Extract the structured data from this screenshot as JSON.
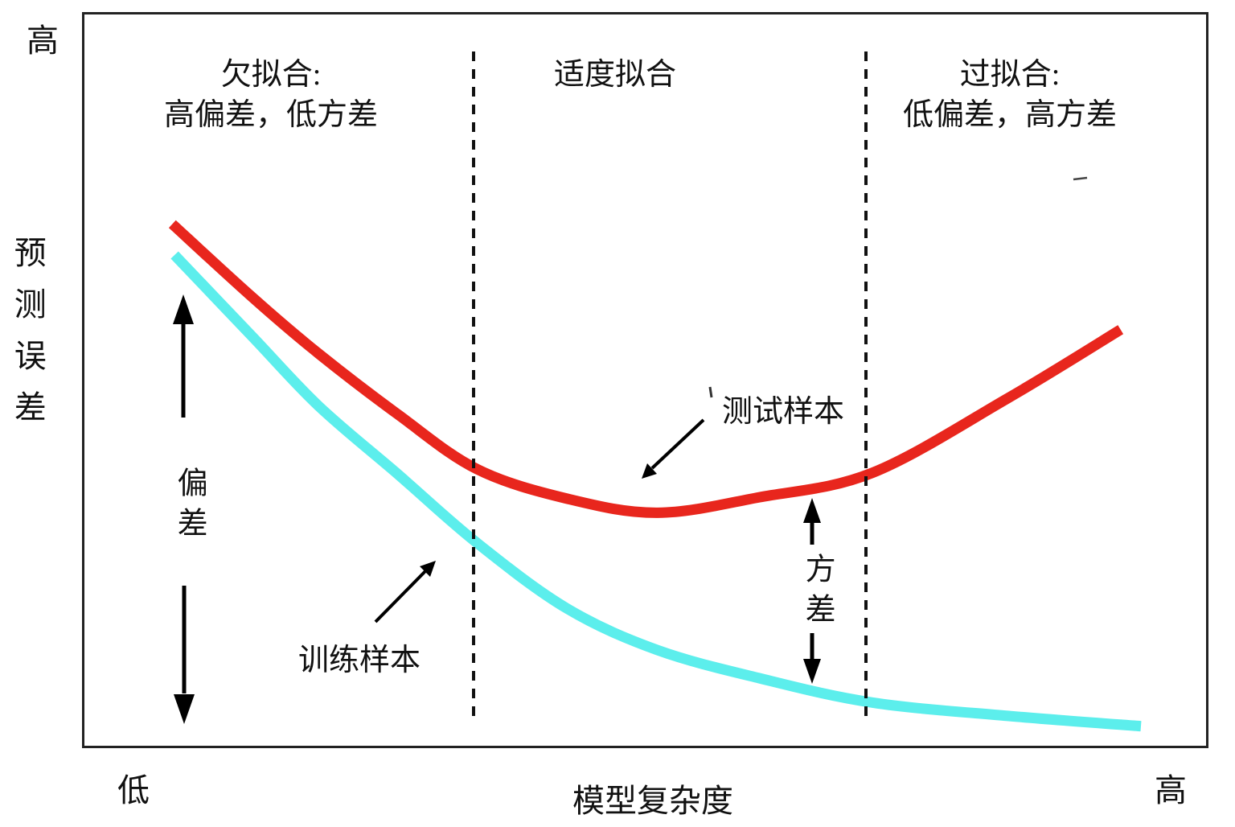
{
  "chart": {
    "y_axis": {
      "top_label": "高",
      "title": "预测误差"
    },
    "x_axis": {
      "left_label": "低",
      "right_label": "高",
      "title": "模型复杂度"
    },
    "regions": [
      {
        "line1": "欠拟合:",
        "line2": "高偏差，低方差"
      },
      {
        "line1": "适度拟合",
        "line2": ""
      },
      {
        "line1": "过拟合:",
        "line2": "低偏差，高方差"
      }
    ],
    "annotations": {
      "bias": "偏差",
      "variance": "方差",
      "train": "训练样本",
      "test": "测试样本"
    },
    "colors": {
      "test_curve": "#e8261d",
      "train_curve": "#5ceeec",
      "ink": "#111111"
    }
  },
  "chart_data": {
    "type": "line",
    "title": "",
    "xlabel": "模型复杂度",
    "ylabel": "预测误差",
    "x_axis_end_labels": [
      "低",
      "高"
    ],
    "y_axis_top_label": "高",
    "x_range": [
      0,
      1
    ],
    "y_range": [
      0,
      1
    ],
    "grid": false,
    "legend_position": "inline-annotations",
    "region_boundaries_x": [
      0.347,
      0.694
    ],
    "region_labels": [
      "欠拟合: 高偏差，低方差",
      "适度拟合",
      "过拟合: 低偏差，高方差"
    ],
    "series": [
      {
        "name": "测试样本",
        "color": "#e8261d",
        "points": [
          [
            0.08,
            0.713
          ],
          [
            0.15,
            0.615
          ],
          [
            0.21,
            0.537
          ],
          [
            0.28,
            0.455
          ],
          [
            0.35,
            0.381
          ],
          [
            0.43,
            0.341
          ],
          [
            0.51,
            0.322
          ],
          [
            0.6,
            0.343
          ],
          [
            0.7,
            0.376
          ],
          [
            0.82,
            0.477
          ],
          [
            0.92,
            0.57
          ]
        ]
      },
      {
        "name": "训练样本",
        "color": "#5ceeec",
        "points": [
          [
            0.082,
            0.671
          ],
          [
            0.15,
            0.562
          ],
          [
            0.21,
            0.466
          ],
          [
            0.28,
            0.374
          ],
          [
            0.35,
            0.281
          ],
          [
            0.43,
            0.192
          ],
          [
            0.51,
            0.136
          ],
          [
            0.6,
            0.098
          ],
          [
            0.7,
            0.065
          ],
          [
            0.82,
            0.047
          ],
          [
            0.938,
            0.033
          ]
        ]
      }
    ],
    "annotations": [
      {
        "text": "偏差",
        "type": "double-arrow-vertical"
      },
      {
        "text": "方差",
        "type": "double-arrow-vertical"
      },
      {
        "text": "训练样本",
        "type": "arrow-to-curve"
      },
      {
        "text": "测试样本",
        "type": "arrow-to-curve"
      }
    ]
  }
}
